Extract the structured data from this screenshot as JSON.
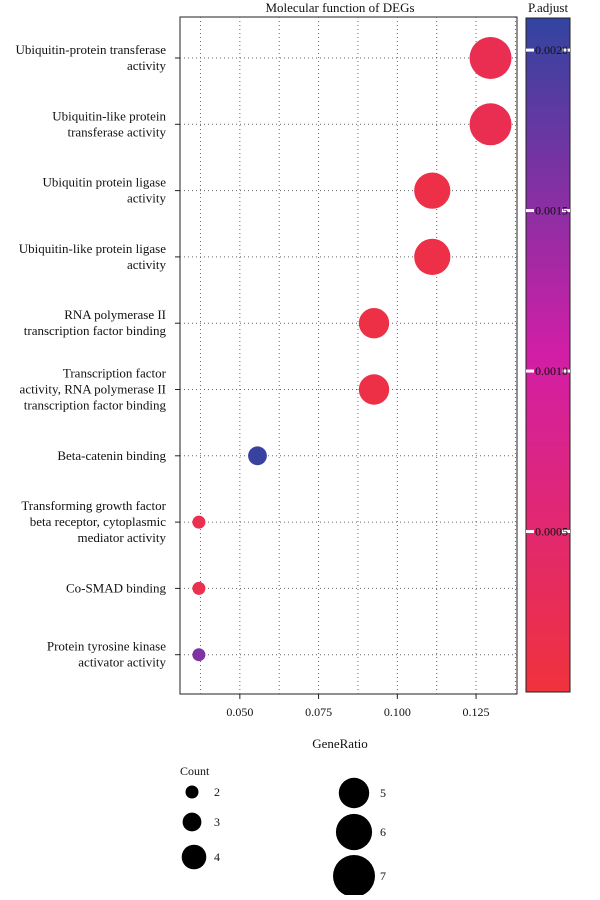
{
  "chart_data": {
    "type": "scatter",
    "title": "Molecular function of DEGs",
    "xlabel": "GeneRatio",
    "ylabel": "",
    "xlim": [
      0.031,
      0.138
    ],
    "x_ticks": [
      "0.050",
      "0.075",
      "0.100",
      "0.125"
    ],
    "x_tick_values": [
      0.05,
      0.075,
      0.1,
      0.125
    ],
    "grid": true,
    "categories": [
      [
        "Ubiquitin-protein transferase",
        "activity"
      ],
      [
        "Ubiquitin-like protein",
        "transferase activity"
      ],
      [
        "Ubiquitin protein ligase",
        "activity"
      ],
      [
        "Ubiquitin-like protein ligase",
        "activity"
      ],
      [
        "RNA polymerase II",
        "transcription factor binding"
      ],
      [
        "Transcription factor",
        "activity, RNA polymerase II",
        "transcription factor binding"
      ],
      [
        "Beta-catenin binding"
      ],
      [
        "Transforming growth factor",
        "beta receptor, cytoplasmic",
        "mediator activity"
      ],
      [
        "Co-SMAD binding"
      ],
      [
        "Protein tyrosine kinase",
        "activator activity"
      ]
    ],
    "points": [
      {
        "x": 0.1296,
        "count": 7,
        "padjust": 0.00022
      },
      {
        "x": 0.1296,
        "count": 7,
        "padjust": 0.00022
      },
      {
        "x": 0.1111,
        "count": 6,
        "padjust": 0.00012
      },
      {
        "x": 0.1111,
        "count": 6,
        "padjust": 0.00012
      },
      {
        "x": 0.0926,
        "count": 5,
        "padjust": 0.0001
      },
      {
        "x": 0.0926,
        "count": 5,
        "padjust": 0.0001
      },
      {
        "x": 0.0556,
        "count": 3,
        "padjust": 0.00205
      },
      {
        "x": 0.037,
        "count": 2,
        "padjust": 0.00018
      },
      {
        "x": 0.037,
        "count": 2,
        "padjust": 0.00018
      },
      {
        "x": 0.037,
        "count": 2,
        "padjust": 0.0016
      }
    ],
    "color_legend": {
      "title": "P.adjust",
      "range": [
        0.0,
        0.0021
      ],
      "ticks": [
        "0.0005",
        "0.0010",
        "0.0015",
        "0.0020"
      ],
      "tick_values": [
        0.0005,
        0.001,
        0.0015,
        0.002
      ],
      "low_color": "#f0323c",
      "mid_color": "#d21ea6",
      "high_color": "#3244a0"
    },
    "size_legend": {
      "title": "Count",
      "labels": [
        "2",
        "3",
        "4",
        "5",
        "6",
        "7"
      ],
      "values": [
        2,
        3,
        4,
        5,
        6,
        7
      ]
    },
    "legend_placement": "right"
  }
}
